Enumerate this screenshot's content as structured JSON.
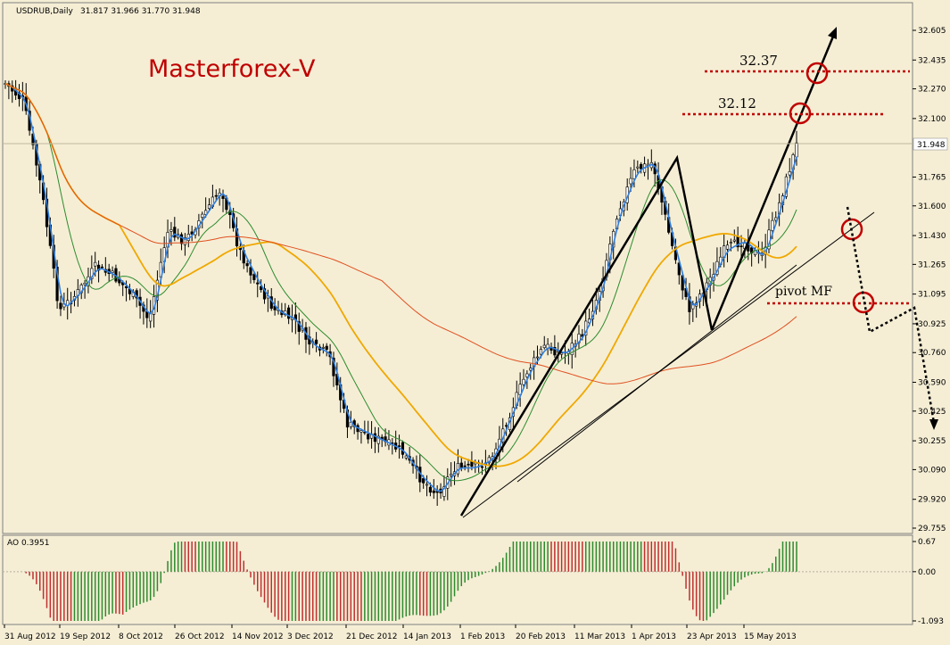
{
  "header": {
    "symbol": "USDRUB,Daily",
    "ohlc": "31.817 31.966 31.770 31.948"
  },
  "watermark": "Masterforex-V",
  "price_axis": {
    "ticks": [
      "32.605",
      "32.435",
      "32.270",
      "32.100",
      "31.765",
      "31.600",
      "31.430",
      "31.265",
      "31.095",
      "30.925",
      "30.760",
      "30.590",
      "30.425",
      "30.255",
      "30.090",
      "29.920",
      "29.755"
    ],
    "current_price": "31.948"
  },
  "annotations": {
    "level_high": "32.37",
    "level_mid": "32.12",
    "pivot": "pivot MF"
  },
  "indicator": {
    "label": "AO 0.3951",
    "ticks": [
      "0.67",
      "0.00",
      "-1.093"
    ]
  },
  "date_axis": [
    "31 Aug 2012",
    "19 Sep 2012",
    "8 Oct 2012",
    "26 Oct 2012",
    "14 Nov 2012",
    "3 Dec 2012",
    "21 Dec 2012",
    "14 Jan 2013",
    "1 Feb 2013",
    "20 Feb 2013",
    "11 Mar 2013",
    "1 Apr 2013",
    "23 Apr 2013",
    "15 May 2013"
  ],
  "colors": {
    "background": "#f5eed5",
    "candles": "#000000",
    "ma_fast": "#2f7fe0",
    "ma_mid": "#2e8b2e",
    "ma_slow": "#f0a800",
    "ma_long": "#e05020",
    "annotation": "#c00000",
    "ao_up": "#2e8b2e",
    "ao_down": "#c03030"
  },
  "chart_data": {
    "type": "candlestick",
    "symbol": "USDRUB",
    "timeframe": "Daily",
    "last": {
      "open": 31.817,
      "high": 31.966,
      "low": 31.77,
      "close": 31.948
    },
    "ylim": [
      29.755,
      32.605
    ],
    "close_path": [
      {
        "date": "31 Aug 2012",
        "close": 32.3
      },
      {
        "date": "5 Sep 2012",
        "close": 32.2
      },
      {
        "date": "10 Sep 2012",
        "close": 31.7
      },
      {
        "date": "14 Sep 2012",
        "close": 31.0
      },
      {
        "date": "19 Sep 2012",
        "close": 31.1
      },
      {
        "date": "26 Sep 2012",
        "close": 31.25
      },
      {
        "date": "2 Oct 2012",
        "close": 31.2
      },
      {
        "date": "8 Oct 2012",
        "close": 31.1
      },
      {
        "date": "15 Oct 2012",
        "close": 30.95
      },
      {
        "date": "22 Oct 2012",
        "close": 31.45
      },
      {
        "date": "26 Oct 2012",
        "close": 31.4
      },
      {
        "date": "2 Nov 2012",
        "close": 31.55
      },
      {
        "date": "9 Nov 2012",
        "close": 31.7
      },
      {
        "date": "14 Nov 2012",
        "close": 31.35
      },
      {
        "date": "20 Nov 2012",
        "close": 31.15
      },
      {
        "date": "27 Nov 2012",
        "close": 31.0
      },
      {
        "date": "3 Dec 2012",
        "close": 30.95
      },
      {
        "date": "10 Dec 2012",
        "close": 30.8
      },
      {
        "date": "17 Dec 2012",
        "close": 30.75
      },
      {
        "date": "21 Dec 2012",
        "close": 30.35
      },
      {
        "date": "28 Dec 2012",
        "close": 30.3
      },
      {
        "date": "9 Jan 2013",
        "close": 30.25
      },
      {
        "date": "14 Jan 2013",
        "close": 30.2
      },
      {
        "date": "22 Jan 2013",
        "close": 30.05
      },
      {
        "date": "28 Jan 2013",
        "close": 29.95
      },
      {
        "date": "1 Feb 2013",
        "close": 30.1
      },
      {
        "date": "8 Feb 2013",
        "close": 30.1
      },
      {
        "date": "14 Feb 2013",
        "close": 30.15
      },
      {
        "date": "20 Feb 2013",
        "close": 30.4
      },
      {
        "date": "27 Feb 2013",
        "close": 30.65
      },
      {
        "date": "5 Mar 2013",
        "close": 30.8
      },
      {
        "date": "11 Mar 2013",
        "close": 30.75
      },
      {
        "date": "18 Mar 2013",
        "close": 30.85
      },
      {
        "date": "25 Mar 2013",
        "close": 31.1
      },
      {
        "date": "1 Apr 2013",
        "close": 31.55
      },
      {
        "date": "8 Apr 2013",
        "close": 31.8
      },
      {
        "date": "12 Apr 2013",
        "close": 31.85
      },
      {
        "date": "17 Apr 2013",
        "close": 31.4
      },
      {
        "date": "23 Apr 2013",
        "close": 31.0
      },
      {
        "date": "30 Apr 2013",
        "close": 31.15
      },
      {
        "date": "7 May 2013",
        "close": 31.35
      },
      {
        "date": "15 May 2013",
        "close": 31.4
      },
      {
        "date": "22 May 2013",
        "close": 31.3
      },
      {
        "date": "27 May 2013",
        "close": 31.6
      },
      {
        "date": "31 May 2013",
        "close": 31.948
      }
    ],
    "ao": {
      "name": "AO",
      "last": 0.3951,
      "ylim": [
        -1.093,
        0.67
      ]
    }
  }
}
